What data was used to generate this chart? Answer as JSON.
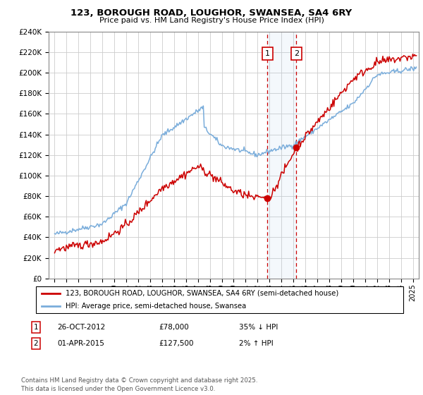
{
  "title1": "123, BOROUGH ROAD, LOUGHOR, SWANSEA, SA4 6RY",
  "title2": "Price paid vs. HM Land Registry's House Price Index (HPI)",
  "legend_line1": "123, BOROUGH ROAD, LOUGHOR, SWANSEA, SA4 6RY (semi-detached house)",
  "legend_line2": "HPI: Average price, semi-detached house, Swansea",
  "annotation1_date": "26-OCT-2012",
  "annotation1_price": "£78,000",
  "annotation1_hpi": "35% ↓ HPI",
  "annotation2_date": "01-APR-2015",
  "annotation2_price": "£127,500",
  "annotation2_hpi": "2% ↑ HPI",
  "sale1_x": 2012.82,
  "sale1_y": 78000,
  "sale2_x": 2015.25,
  "sale2_y": 127500,
  "ylim": [
    0,
    240000
  ],
  "xlim_start": 1994.5,
  "xlim_end": 2025.5,
  "grid_color": "#cccccc",
  "hpi_line_color": "#7aaddb",
  "price_line_color": "#cc0000",
  "vline_color": "#cc0000",
  "background_color": "#ffffff",
  "footnote": "Contains HM Land Registry data © Crown copyright and database right 2025.\nThis data is licensed under the Open Government Licence v3.0."
}
